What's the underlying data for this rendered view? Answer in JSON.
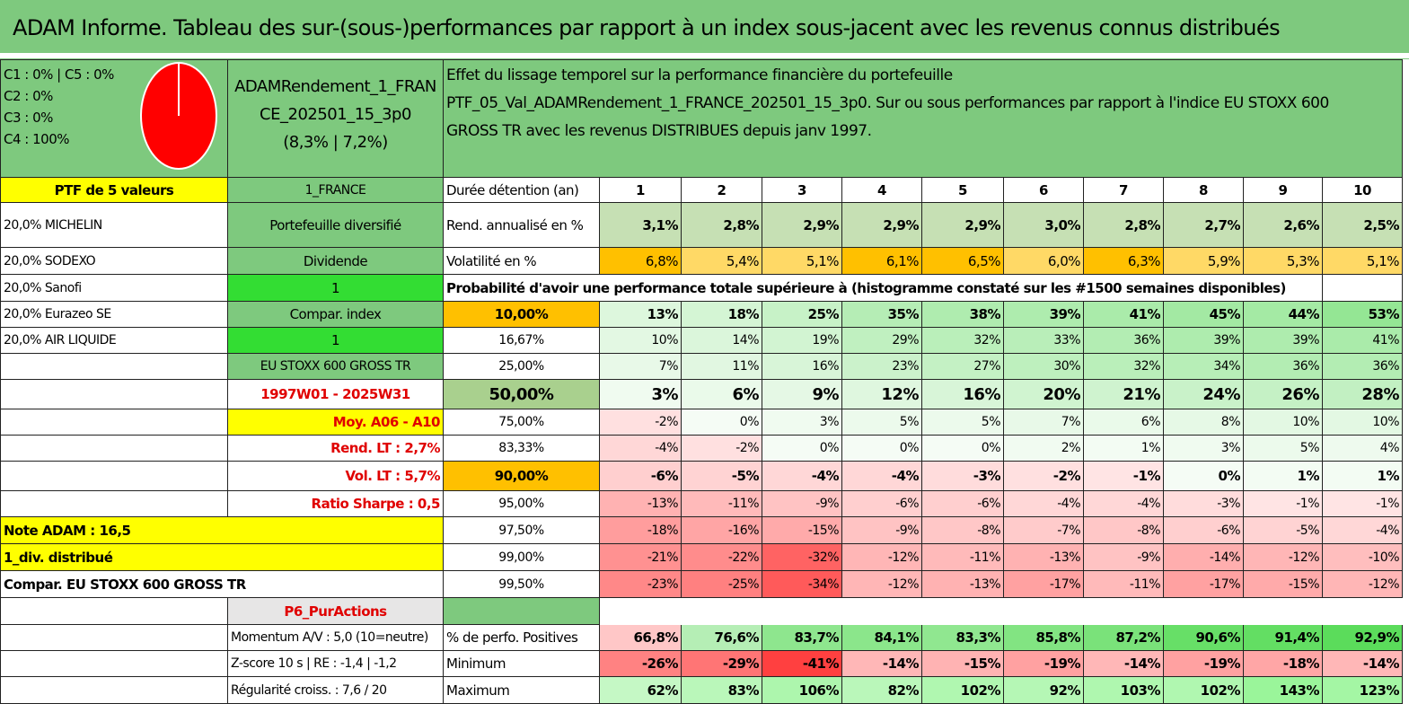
{
  "title": "ADAM Informe. Tableau des sur-(sous-)performances par rapport à un index sous-jacent avec les revenus connus distribués",
  "colors": {
    "header_green": "#7ec97e",
    "pie_red": "#ff0000",
    "highlight_yellow": "#ffff00",
    "highlight_orange": "#ffc000",
    "bright_green": "#33dd33"
  },
  "composition": {
    "lines": [
      "C1 : 0% | C5 : 0%",
      "C2 : 0%",
      "C3 : 0%",
      "C4 : 100%"
    ],
    "pie_shares": [
      0,
      0,
      0,
      1,
      0
    ]
  },
  "portfolio_name": {
    "line1": "ADAMRendement_1_FRAN",
    "line2": "CE_202501_15_3p0",
    "line3": "(8,3% | 7,2%)"
  },
  "description": {
    "line1": "Effet du lissage temporel sur la performance financière du portefeuille",
    "line2": "PTF_05_Val_ADAMRendement_1_FRANCE_202501_15_3p0. Sur ou sous performances par rapport à l'indice EU STOXX 600",
    "line3": "GROSS TR avec les revenus DISTRIBUES depuis janv 1997."
  },
  "left_col": {
    "ptf_label": "PTF de 5 valeurs",
    "holdings": [
      "20,0% MICHELIN",
      "20,0% SODEXO",
      "20,0% Sanofi",
      "20,0% Eurazeo SE",
      "20,0% AIR LIQUIDE"
    ],
    "note": "Note ADAM : 16,5",
    "div": "1_div. distribué",
    "compar": "Compar. EU STOXX 600 GROSS TR"
  },
  "mid_col": {
    "region": "1_FRANCE",
    "type": "Portefeuille diversifié",
    "dividende": "Dividende",
    "one_a": "1",
    "compar_index": "Compar. index",
    "one_b": "1",
    "index_name": "EU STOXX 600 GROSS TR",
    "period": "1997W01 - 2025W31",
    "moy": "Moy. A06 - A10",
    "rend_lt": "Rend. LT : 2,7%",
    "vol_lt": "Vol. LT : 5,7%",
    "sharpe": "Ratio Sharpe : 0,5",
    "p6": "P6_PurActions",
    "momentum": "Momentum A/V : 5,0 (10=neutre)",
    "zscore": "Z-score 10 s | RE : -1,4 | -1,2",
    "regularite": "Régularité croiss. : 7,6 / 20"
  },
  "table": {
    "duration_label": "Durée détention (an)",
    "years": [
      "1",
      "2",
      "3",
      "4",
      "5",
      "6",
      "7",
      "8",
      "9",
      "10"
    ],
    "rend_label": "Rend. annualisé en %",
    "rend": [
      "3,1%",
      "2,8%",
      "2,9%",
      "2,9%",
      "2,9%",
      "3,0%",
      "2,8%",
      "2,7%",
      "2,6%",
      "2,5%"
    ],
    "vol_label": "Volatilité en %",
    "vol": [
      "6,8%",
      "5,4%",
      "5,1%",
      "6,1%",
      "6,5%",
      "6,0%",
      "6,3%",
      "5,9%",
      "5,3%",
      "5,1%"
    ],
    "prob_label": "Probabilité d'avoir une performance totale supérieure à (histogramme constaté sur les #1500 semaines disponibles)",
    "quantiles": [
      {
        "q": "10,00%",
        "vals": [
          "13%",
          "18%",
          "25%",
          "35%",
          "38%",
          "39%",
          "41%",
          "45%",
          "44%",
          "53%"
        ],
        "style": "bold"
      },
      {
        "q": "16,67%",
        "vals": [
          "10%",
          "14%",
          "19%",
          "29%",
          "32%",
          "33%",
          "36%",
          "39%",
          "39%",
          "41%"
        ],
        "style": "normal"
      },
      {
        "q": "25,00%",
        "vals": [
          "7%",
          "11%",
          "16%",
          "23%",
          "27%",
          "30%",
          "32%",
          "34%",
          "36%",
          "36%"
        ],
        "style": "normal"
      },
      {
        "q": "50,00%",
        "vals": [
          "3%",
          "6%",
          "9%",
          "12%",
          "16%",
          "20%",
          "21%",
          "24%",
          "26%",
          "28%"
        ],
        "style": "big"
      },
      {
        "q": "75,00%",
        "vals": [
          "-2%",
          "0%",
          "3%",
          "5%",
          "5%",
          "7%",
          "6%",
          "8%",
          "10%",
          "10%"
        ],
        "style": "normal"
      },
      {
        "q": "83,33%",
        "vals": [
          "-4%",
          "-2%",
          "0%",
          "0%",
          "0%",
          "2%",
          "1%",
          "3%",
          "5%",
          "4%"
        ],
        "style": "normal"
      },
      {
        "q": "90,00%",
        "vals": [
          "-6%",
          "-5%",
          "-4%",
          "-4%",
          "-3%",
          "-2%",
          "-1%",
          "0%",
          "1%",
          "1%"
        ],
        "style": "bold"
      },
      {
        "q": "95,00%",
        "vals": [
          "-13%",
          "-11%",
          "-9%",
          "-6%",
          "-6%",
          "-4%",
          "-4%",
          "-3%",
          "-1%",
          "-1%"
        ],
        "style": "normal"
      },
      {
        "q": "97,50%",
        "vals": [
          "-18%",
          "-16%",
          "-15%",
          "-9%",
          "-8%",
          "-7%",
          "-8%",
          "-6%",
          "-5%",
          "-4%"
        ],
        "style": "normal"
      },
      {
        "q": "99,00%",
        "vals": [
          "-21%",
          "-22%",
          "-32%",
          "-12%",
          "-11%",
          "-13%",
          "-9%",
          "-14%",
          "-12%",
          "-10%"
        ],
        "style": "normal"
      },
      {
        "q": "99,50%",
        "vals": [
          "-23%",
          "-25%",
          "-34%",
          "-12%",
          "-13%",
          "-17%",
          "-11%",
          "-17%",
          "-15%",
          "-12%"
        ],
        "style": "normal"
      }
    ],
    "pos_label": "% de perfo. Positives",
    "pos": [
      "66,8%",
      "76,6%",
      "83,7%",
      "84,1%",
      "83,3%",
      "85,8%",
      "87,2%",
      "90,6%",
      "91,4%",
      "92,9%"
    ],
    "min_label": "Minimum",
    "min": [
      "-26%",
      "-29%",
      "-41%",
      "-14%",
      "-15%",
      "-19%",
      "-14%",
      "-19%",
      "-18%",
      "-14%"
    ],
    "max_label": "Maximum",
    "max": [
      "62%",
      "83%",
      "106%",
      "82%",
      "102%",
      "92%",
      "103%",
      "102%",
      "143%",
      "123%"
    ]
  }
}
